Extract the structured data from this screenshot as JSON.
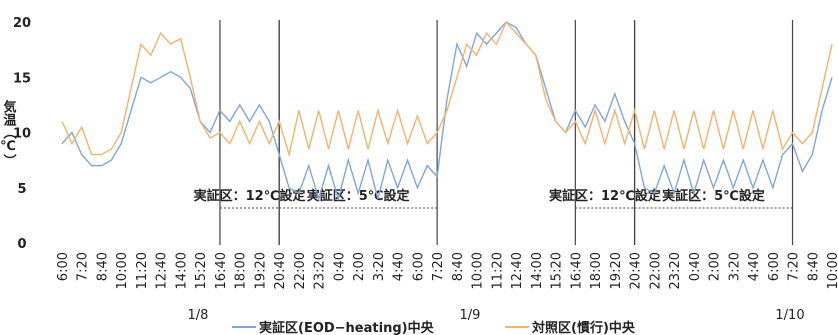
{
  "chart_data": {
    "type": "line",
    "y_label": "気温（℃）",
    "categories": [
      "6:00",
      null,
      "7:20",
      null,
      "8:40",
      null,
      "10:00",
      null,
      "11:20",
      null,
      "12:40",
      null,
      "14:00",
      null,
      "15:20",
      null,
      "16:40",
      null,
      "18:00",
      null,
      "19:20",
      null,
      "20:40",
      null,
      "22:00",
      null,
      "23:20",
      null,
      "0:40",
      null,
      "2:00",
      null,
      "3:20",
      null,
      "4:40",
      null,
      "6:00",
      null,
      "7:20",
      null,
      "8:40",
      null,
      "10:00",
      null,
      "11:20",
      null,
      "12:40",
      null,
      "14:00",
      null,
      "15:20",
      null,
      "16:40",
      null,
      "18:00",
      null,
      "19:20",
      null,
      "20:40",
      null,
      "22:00",
      null,
      "23:20",
      null,
      "0:40",
      null,
      "2:00",
      null,
      "3:20",
      null,
      "4:40",
      null,
      "6:00",
      null,
      "7:20",
      null,
      "8:40",
      null,
      "10:00"
    ],
    "series": [
      {
        "name": "実証区(EOD−heating)中央",
        "color": "#7fa6d8",
        "values": [
          9,
          10,
          8,
          7,
          7,
          7.5,
          9,
          12,
          15,
          14.5,
          15,
          15.5,
          15,
          14,
          11,
          10,
          12,
          11,
          12.5,
          11,
          12.5,
          11,
          8,
          5,
          4.5,
          7,
          4,
          7,
          4,
          7.5,
          4.5,
          7.5,
          4,
          7.5,
          5,
          7.5,
          5,
          7,
          6,
          13,
          18,
          16,
          19,
          18,
          19,
          20,
          19.5,
          18,
          17,
          14,
          11,
          10,
          12,
          10.5,
          12.5,
          11,
          13.5,
          11,
          9,
          5,
          4.5,
          7,
          4.5,
          7.5,
          4.5,
          7.5,
          5,
          7.5,
          5,
          7.5,
          5,
          7.5,
          5,
          8,
          9,
          6.5,
          8,
          12,
          15
        ]
      },
      {
        "name": "対照区(慣行)中央",
        "color": "#f5b26b",
        "values": [
          11,
          9,
          10.5,
          8,
          8,
          8.5,
          10,
          14,
          18,
          17,
          19,
          18,
          18.5,
          15,
          11,
          9.5,
          10,
          9,
          11,
          9,
          11,
          9,
          11,
          8,
          12,
          8.5,
          12,
          8.5,
          12,
          8.5,
          12,
          8.5,
          12,
          9,
          12,
          9,
          11.5,
          9,
          10,
          12,
          15,
          18,
          17,
          19,
          18,
          20,
          19,
          18,
          17,
          13,
          11,
          10,
          11,
          9,
          12,
          9,
          12,
          9,
          12,
          8.5,
          12,
          8.5,
          12,
          8.5,
          12,
          8.5,
          12,
          8.5,
          12,
          8.5,
          12,
          8.5,
          12,
          8.5,
          10,
          9,
          10,
          14,
          18
        ]
      }
    ],
    "ylim": [
      0,
      20
    ],
    "yticks": [
      0,
      5,
      10,
      15,
      20
    ],
    "annotations": [
      {
        "text": "実証区：12℃設定",
        "start_index": 16,
        "end_index": 22
      },
      {
        "text": "実証区：5℃設定",
        "start_index": 22,
        "end_index": 38
      },
      {
        "text": "実証区：12℃設定",
        "start_index": 52,
        "end_index": 58
      },
      {
        "text": "実証区：5℃設定",
        "start_index": 58,
        "end_index": 74
      }
    ],
    "date_labels": [
      "1/8",
      "1/9",
      "1/10"
    ]
  }
}
